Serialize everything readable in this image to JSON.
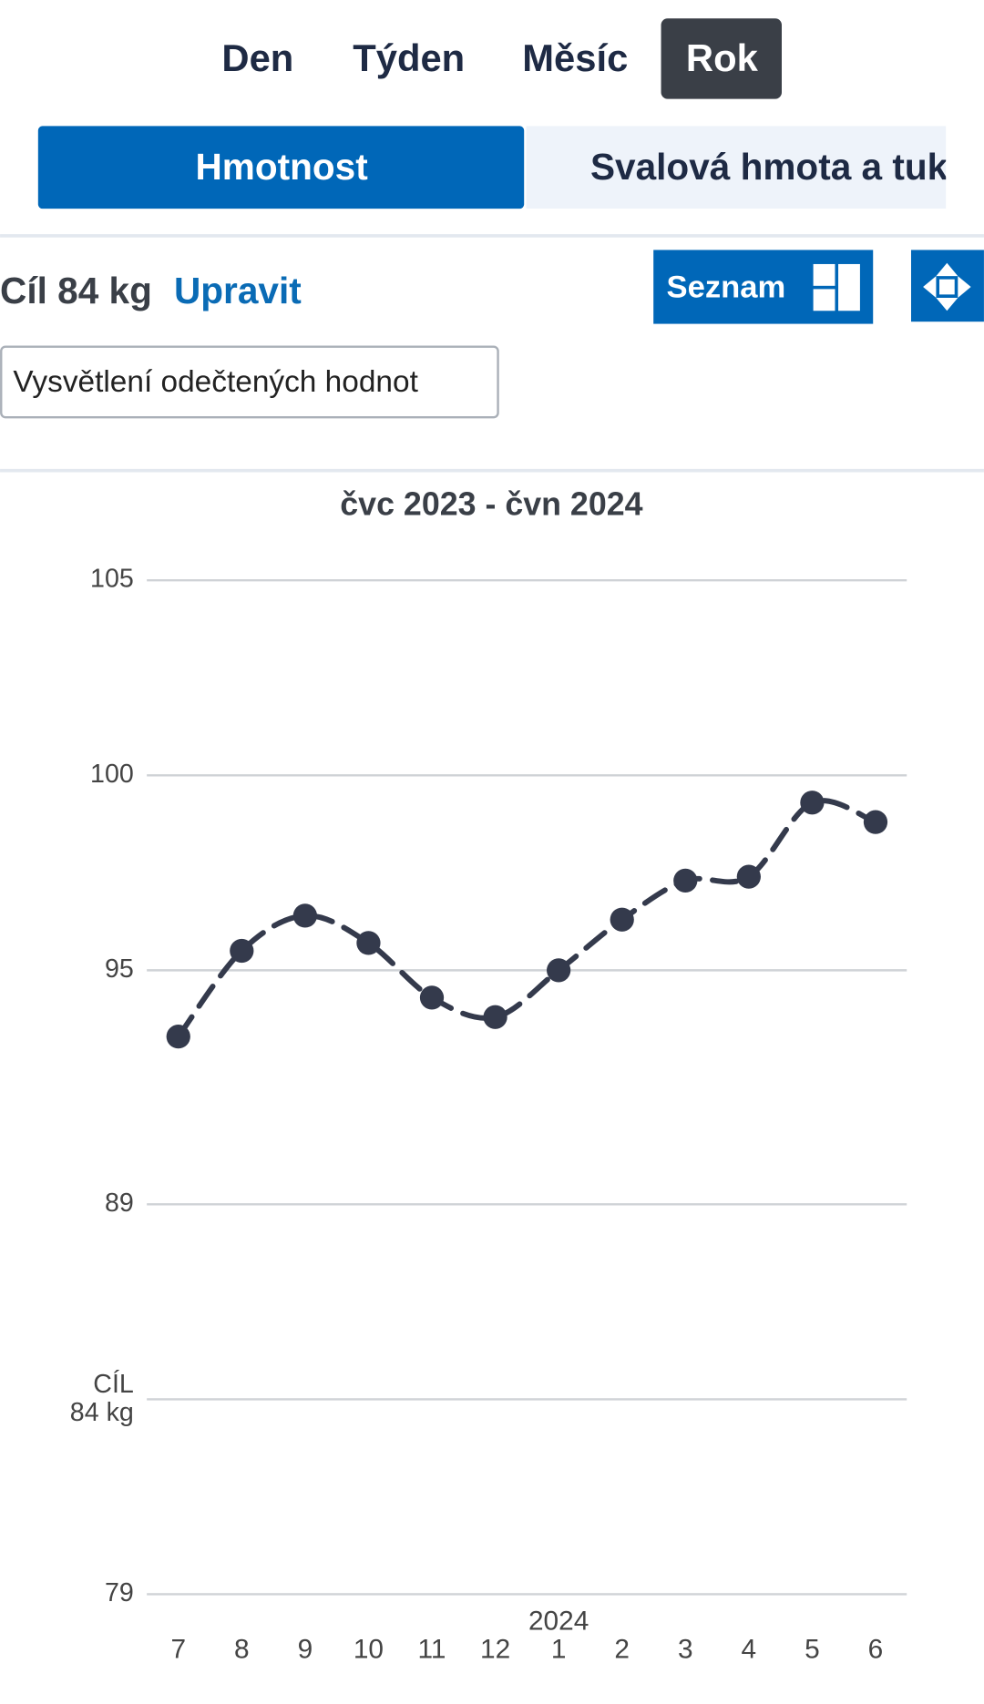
{
  "tabs": {
    "items": [
      "Den",
      "Týden",
      "Měsíc",
      "Rok"
    ],
    "active": 3
  },
  "segments": {
    "items": [
      "Hmotnost",
      "Svalová hmota a tuk"
    ],
    "active": 0
  },
  "goal": {
    "text": "Cíl 84 kg",
    "edit": "Upravit"
  },
  "list_button": "Seznam",
  "explain_button": "Vysvětlení odečtených hodnot",
  "chart_data": {
    "type": "line",
    "title": "čvc 2023 - čvn 2024",
    "categories": [
      "7",
      "8",
      "9",
      "10",
      "11",
      "12",
      "1",
      "2",
      "3",
      "4",
      "5",
      "6"
    ],
    "year_label": {
      "text": "2024",
      "index": 6
    },
    "series": [
      {
        "name": "Hmotnost",
        "color": "#343a4c",
        "values": [
          93.3,
          95.5,
          96.4,
          95.7,
          94.3,
          93.8,
          95.0,
          96.3,
          97.3,
          97.4,
          99.3,
          98.8
        ]
      }
    ],
    "ylim": [
      79,
      105
    ],
    "yticks": [
      79,
      {
        "value": 84,
        "label": "CÍL\n84 kg"
      },
      89,
      95,
      100,
      105
    ],
    "grid": true,
    "dashed": true
  }
}
